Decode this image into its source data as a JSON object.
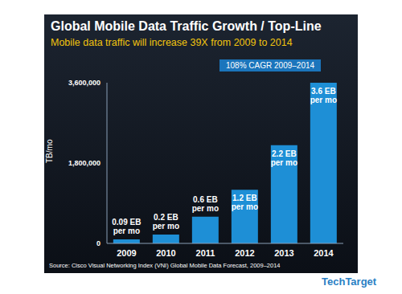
{
  "chart_data": {
    "type": "bar",
    "title": "Global Mobile Data Traffic Growth / Top-Line",
    "subtitle": "Mobile data traffic will increase 39X from 2009 to 2014",
    "annotation": "108% CAGR 2009–2014",
    "ylabel": "TB/mo",
    "source": "Source: Cisco Visual Networking Index (VNI) Global Mobile Data Forecast, 2009–2014",
    "watermark": "TechTarget",
    "categories": [
      "2009",
      "2010",
      "2011",
      "2012",
      "2013",
      "2014"
    ],
    "values": [
      90000,
      200000,
      600000,
      1200000,
      2200000,
      3600000
    ],
    "value_labels": [
      "0.09 EB per mo",
      "0.2 EB per mo",
      "0.6 EB per mo",
      "1.2 EB per mo",
      "2.2 EB per mo",
      "3.6 EB per mo"
    ],
    "data_labels": true,
    "color": "#1e8fd6",
    "ylim": [
      0,
      3600000
    ],
    "yticks": [
      0,
      {
        "value": 1800000,
        "label": "1,800,000"
      },
      {
        "value": 3600000,
        "label": "3,600,000"
      }
    ],
    "grid": false
  }
}
